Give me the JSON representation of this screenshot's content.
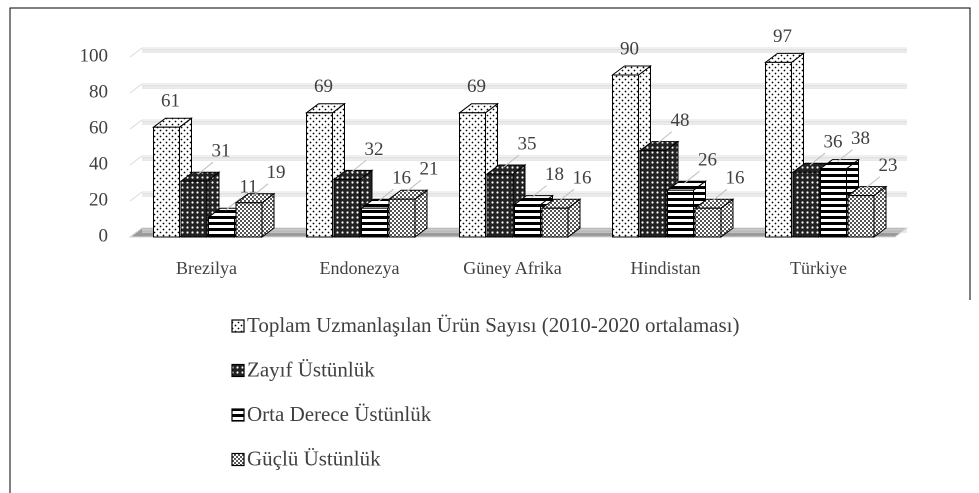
{
  "chart_data": {
    "type": "bar3d",
    "categories": [
      "Brezilya",
      "Endonezya",
      "Güney Afrika",
      "Hindistan",
      "Türkiye"
    ],
    "series": [
      {
        "name": "Toplam Uzmanlaşılan Ürün Sayısı (2010-2020 ortalaması)",
        "pattern": "dots",
        "values": [
          61,
          69,
          69,
          90,
          97
        ]
      },
      {
        "name": "Zayıf Üstünlük",
        "pattern": "crosshatch",
        "values": [
          31,
          32,
          35,
          48,
          36
        ]
      },
      {
        "name": "Orta Derece Üstünlük",
        "pattern": "hstripes",
        "values": [
          11,
          16,
          18,
          26,
          38
        ]
      },
      {
        "name": "Güçlü Üstünlük",
        "pattern": "checker",
        "values": [
          19,
          21,
          16,
          16,
          23
        ]
      }
    ],
    "ylim": [
      0,
      100
    ],
    "yticks": [
      0,
      20,
      40,
      60,
      80,
      100
    ],
    "grid": true
  }
}
